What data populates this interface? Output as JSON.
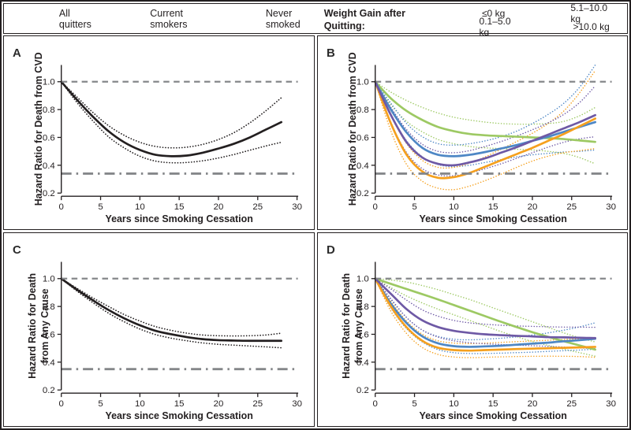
{
  "palette": {
    "black": "#231f20",
    "gray": "#85878a",
    "green": "#9dc963",
    "blue": "#4e87c5",
    "orange": "#f5a01e",
    "purple": "#6e59a5"
  },
  "legend": {
    "line_styles": [
      {
        "label": "All quitters",
        "style": "solid",
        "color": "black"
      },
      {
        "label": "Current smokers",
        "style": "dashed",
        "color": "gray"
      },
      {
        "label": "Never smoked",
        "style": "dashdot",
        "color": "gray"
      }
    ],
    "weight_gain_title": "Weight Gain after Quitting:",
    "weight_gain_items": [
      {
        "label": "≤0 kg",
        "color": "green"
      },
      {
        "label": "0.1–5.0 kg",
        "color": "blue"
      },
      {
        "label": "5.1–10.0 kg",
        "color": "orange"
      },
      {
        "label": ">10.0 kg",
        "color": "purple"
      }
    ]
  },
  "chart_data": [
    {
      "type": "line",
      "panel": "A",
      "ylabel": "Hazard Ratio for Death from CVD",
      "xlabel": "Years since Smoking Cessation",
      "xlim": [
        0,
        30
      ],
      "ylim": [
        0.2,
        1.12
      ],
      "xticks": [
        0,
        5,
        10,
        15,
        20,
        25,
        30
      ],
      "yticks": [
        0.2,
        0.4,
        0.6,
        0.8,
        1.0
      ],
      "reference_lines": [
        {
          "name": "Current smokers",
          "value": 1.0,
          "style": "dashed"
        },
        {
          "name": "Never smoked",
          "value": 0.34,
          "style": "dashdot"
        }
      ],
      "x": [
        0,
        2,
        4,
        6,
        8,
        10,
        12,
        14,
        16,
        18,
        20,
        22,
        24,
        26,
        28
      ],
      "series": [
        {
          "name": "All quitters",
          "color": "black",
          "values": [
            1.0,
            0.87,
            0.75,
            0.645,
            0.565,
            0.51,
            0.475,
            0.465,
            0.47,
            0.49,
            0.52,
            0.555,
            0.6,
            0.655,
            0.71
          ],
          "ci_upper": [
            1.0,
            0.89,
            0.78,
            0.685,
            0.615,
            0.565,
            0.535,
            0.525,
            0.53,
            0.55,
            0.585,
            0.635,
            0.705,
            0.79,
            0.885
          ],
          "ci_lower": [
            1.0,
            0.85,
            0.72,
            0.605,
            0.525,
            0.465,
            0.43,
            0.418,
            0.42,
            0.432,
            0.452,
            0.478,
            0.508,
            0.538,
            0.565
          ]
        }
      ]
    },
    {
      "type": "line",
      "panel": "B",
      "ylabel": "Hazard Ratio for Death from CVD",
      "xlabel": "Years since Smoking Cessation",
      "xlim": [
        0,
        30
      ],
      "ylim": [
        0.2,
        1.12
      ],
      "xticks": [
        0,
        5,
        10,
        15,
        20,
        25,
        30
      ],
      "yticks": [
        0.2,
        0.4,
        0.6,
        0.8,
        1.0
      ],
      "reference_lines": [
        {
          "name": "Current smokers",
          "value": 1.0,
          "style": "dashed"
        },
        {
          "name": "Never smoked",
          "value": 0.34,
          "style": "dashdot"
        }
      ],
      "x": [
        0,
        2,
        4,
        6,
        8,
        10,
        12,
        14,
        16,
        18,
        20,
        22,
        24,
        26,
        28
      ],
      "series": [
        {
          "name": "≤0 kg",
          "color": "green",
          "values": [
            1.0,
            0.88,
            0.79,
            0.725,
            0.675,
            0.645,
            0.625,
            0.615,
            0.61,
            0.605,
            0.6,
            0.595,
            0.588,
            0.578,
            0.568
          ],
          "ci_upper": [
            1.0,
            0.925,
            0.865,
            0.815,
            0.775,
            0.745,
            0.725,
            0.71,
            0.7,
            0.695,
            0.695,
            0.7,
            0.715,
            0.755,
            0.815
          ],
          "ci_lower": [
            1.0,
            0.835,
            0.715,
            0.64,
            0.585,
            0.555,
            0.535,
            0.525,
            0.52,
            0.515,
            0.51,
            0.5,
            0.485,
            0.455,
            0.41
          ]
        },
        {
          "name": "0.1–5.0 kg",
          "color": "blue",
          "values": [
            1.0,
            0.8,
            0.635,
            0.525,
            0.475,
            0.465,
            0.475,
            0.495,
            0.52,
            0.545,
            0.575,
            0.605,
            0.64,
            0.675,
            0.71
          ],
          "ci_upper": [
            1.0,
            0.845,
            0.7,
            0.605,
            0.555,
            0.545,
            0.555,
            0.575,
            0.605,
            0.645,
            0.7,
            0.765,
            0.845,
            0.96,
            1.12
          ],
          "ci_lower": [
            1.0,
            0.755,
            0.575,
            0.46,
            0.405,
            0.39,
            0.4,
            0.42,
            0.44,
            0.46,
            0.475,
            0.485,
            0.495,
            0.5,
            0.51
          ]
        },
        {
          "name": "5.1–10.0 kg",
          "color": "orange",
          "values": [
            1.0,
            0.7,
            0.475,
            0.355,
            0.31,
            0.315,
            0.345,
            0.39,
            0.435,
            0.48,
            0.525,
            0.575,
            0.625,
            0.68,
            0.735
          ],
          "ci_upper": [
            1.0,
            0.755,
            0.555,
            0.435,
            0.385,
            0.385,
            0.415,
            0.46,
            0.515,
            0.57,
            0.63,
            0.7,
            0.79,
            0.92,
            1.08
          ],
          "ci_lower": [
            1.0,
            0.645,
            0.405,
            0.285,
            0.235,
            0.225,
            0.25,
            0.29,
            0.335,
            0.385,
            0.43,
            0.465,
            0.49,
            0.505,
            0.52
          ]
        },
        {
          "name": ">10.0 kg",
          "color": "purple",
          "values": [
            1.0,
            0.76,
            0.565,
            0.455,
            0.41,
            0.4,
            0.42,
            0.45,
            0.49,
            0.53,
            0.575,
            0.62,
            0.665,
            0.71,
            0.76
          ],
          "ci_upper": [
            1.0,
            0.815,
            0.655,
            0.55,
            0.5,
            0.49,
            0.505,
            0.535,
            0.57,
            0.61,
            0.655,
            0.705,
            0.765,
            0.85,
            0.97
          ],
          "ci_lower": [
            1.0,
            0.705,
            0.49,
            0.375,
            0.33,
            0.325,
            0.345,
            0.375,
            0.41,
            0.45,
            0.49,
            0.53,
            0.565,
            0.59,
            0.605
          ]
        }
      ]
    },
    {
      "type": "line",
      "panel": "C",
      "ylabel": [
        "Hazard Ratio for Death",
        "from Any Cause"
      ],
      "xlabel": "Years since Smoking Cessation",
      "xlim": [
        0,
        30
      ],
      "ylim": [
        0.2,
        1.12
      ],
      "xticks": [
        0,
        5,
        10,
        15,
        20,
        25,
        30
      ],
      "yticks": [
        0.2,
        0.4,
        0.6,
        0.8,
        1.0
      ],
      "reference_lines": [
        {
          "name": "Current smokers",
          "value": 1.0,
          "style": "dashed"
        },
        {
          "name": "Never smoked",
          "value": 0.35,
          "style": "dashdot"
        }
      ],
      "x": [
        0,
        2,
        4,
        6,
        8,
        10,
        12,
        14,
        16,
        18,
        20,
        22,
        24,
        26,
        28
      ],
      "series": [
        {
          "name": "All quitters",
          "color": "black",
          "values": [
            1.0,
            0.92,
            0.845,
            0.775,
            0.715,
            0.665,
            0.625,
            0.6,
            0.58,
            0.565,
            0.558,
            0.555,
            0.553,
            0.553,
            0.553
          ],
          "ci_upper": [
            1.0,
            0.93,
            0.862,
            0.8,
            0.742,
            0.695,
            0.655,
            0.628,
            0.608,
            0.595,
            0.59,
            0.588,
            0.59,
            0.595,
            0.608
          ],
          "ci_lower": [
            1.0,
            0.91,
            0.828,
            0.752,
            0.69,
            0.638,
            0.598,
            0.572,
            0.553,
            0.538,
            0.528,
            0.522,
            0.516,
            0.51,
            0.503
          ]
        }
      ]
    },
    {
      "type": "line",
      "panel": "D",
      "ylabel": [
        "Hazard Ratio for Death",
        "from Any Cause"
      ],
      "xlabel": "Years since Smoking Cessation",
      "xlim": [
        0,
        30
      ],
      "ylim": [
        0.2,
        1.12
      ],
      "xticks": [
        0,
        5,
        10,
        15,
        20,
        25,
        30
      ],
      "yticks": [
        0.2,
        0.4,
        0.6,
        0.8,
        1.0
      ],
      "reference_lines": [
        {
          "name": "Current smokers",
          "value": 1.0,
          "style": "dashed"
        },
        {
          "name": "Never smoked",
          "value": 0.35,
          "style": "dashdot"
        }
      ],
      "x": [
        0,
        2,
        4,
        6,
        8,
        10,
        12,
        14,
        16,
        18,
        20,
        22,
        24,
        26,
        28
      ],
      "series": [
        {
          "name": "≤0 kg",
          "color": "green",
          "values": [
            1.0,
            0.962,
            0.925,
            0.888,
            0.85,
            0.81,
            0.77,
            0.73,
            0.69,
            0.652,
            0.615,
            0.582,
            0.55,
            0.52,
            0.49
          ],
          "ci_upper": [
            1.0,
            0.99,
            0.975,
            0.95,
            0.92,
            0.885,
            0.85,
            0.81,
            0.77,
            0.73,
            0.69,
            0.65,
            0.61,
            0.575,
            0.545
          ],
          "ci_lower": [
            1.0,
            0.935,
            0.875,
            0.825,
            0.78,
            0.74,
            0.7,
            0.66,
            0.62,
            0.583,
            0.548,
            0.52,
            0.493,
            0.468,
            0.443
          ]
        },
        {
          "name": "0.1–5.0 kg",
          "color": "blue",
          "values": [
            1.0,
            0.82,
            0.68,
            0.585,
            0.535,
            0.515,
            0.51,
            0.513,
            0.518,
            0.525,
            0.533,
            0.54,
            0.55,
            0.558,
            0.568
          ],
          "ci_upper": [
            1.0,
            0.85,
            0.72,
            0.63,
            0.585,
            0.565,
            0.56,
            0.565,
            0.572,
            0.582,
            0.595,
            0.61,
            0.63,
            0.653,
            0.683
          ],
          "ci_lower": [
            1.0,
            0.79,
            0.64,
            0.545,
            0.49,
            0.468,
            0.462,
            0.462,
            0.465,
            0.468,
            0.472,
            0.477,
            0.482,
            0.487,
            0.493
          ]
        },
        {
          "name": "5.1–10.0 kg",
          "color": "orange",
          "values": [
            1.0,
            0.8,
            0.65,
            0.553,
            0.503,
            0.487,
            0.483,
            0.487,
            0.49,
            0.494,
            0.497,
            0.5,
            0.503,
            0.506,
            0.51
          ],
          "ci_upper": [
            1.0,
            0.835,
            0.695,
            0.6,
            0.553,
            0.537,
            0.533,
            0.537,
            0.542,
            0.547,
            0.552,
            0.557,
            0.562,
            0.567,
            0.575
          ],
          "ci_lower": [
            1.0,
            0.765,
            0.605,
            0.505,
            0.455,
            0.437,
            0.432,
            0.435,
            0.438,
            0.44,
            0.442,
            0.443,
            0.442,
            0.44,
            0.435
          ]
        },
        {
          "name": ">10.0 kg",
          "color": "purple",
          "values": [
            1.0,
            0.89,
            0.78,
            0.7,
            0.652,
            0.625,
            0.61,
            0.6,
            0.594,
            0.589,
            0.585,
            0.58,
            0.578,
            0.575,
            0.573
          ],
          "ci_upper": [
            1.0,
            0.925,
            0.845,
            0.775,
            0.73,
            0.7,
            0.682,
            0.672,
            0.665,
            0.66,
            0.657,
            0.654,
            0.652,
            0.651,
            0.65
          ],
          "ci_lower": [
            1.0,
            0.855,
            0.72,
            0.63,
            0.58,
            0.553,
            0.54,
            0.532,
            0.527,
            0.522,
            0.518,
            0.513,
            0.508,
            0.502,
            0.497
          ]
        }
      ]
    }
  ]
}
